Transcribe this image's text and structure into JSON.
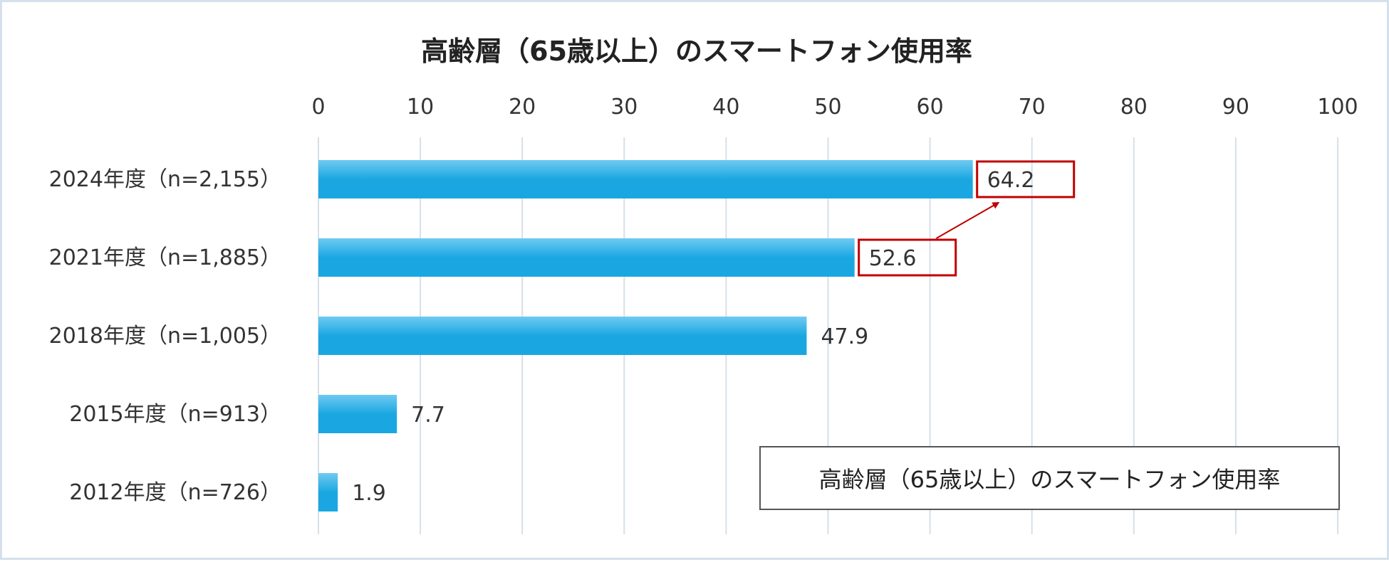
{
  "chart_data": {
    "type": "bar",
    "orientation": "horizontal",
    "title": "高齢層（65歳以上）のスマートフォン使用率",
    "categories": [
      "2024年度（n=2,155）",
      "2021年度（n=1,885）",
      "2018年度（n=1,005）",
      "2015年度（n=913）",
      "2012年度（n=726）"
    ],
    "values": [
      64.2,
      52.6,
      47.9,
      7.7,
      1.9
    ],
    "value_labels": [
      "64.2",
      "52.6",
      "47.9",
      "7.7",
      "1.9"
    ],
    "highlighted": [
      true,
      true,
      false,
      false,
      false
    ],
    "xlim": [
      0,
      100
    ],
    "xticks": [
      "0",
      "10",
      "20",
      "30",
      "40",
      "50",
      "60",
      "70",
      "80",
      "90",
      "100"
    ],
    "xaxis_position": "top",
    "grid": true,
    "legend": {
      "label": "高齢層（65歳以上）のスマートフォン使用率",
      "placement": "bottom-right"
    },
    "colors": {
      "bar": "#1aa7e1",
      "bar_light": "#6fcaf1",
      "highlight": "#c00000",
      "grid": "#d5e0ea"
    }
  }
}
